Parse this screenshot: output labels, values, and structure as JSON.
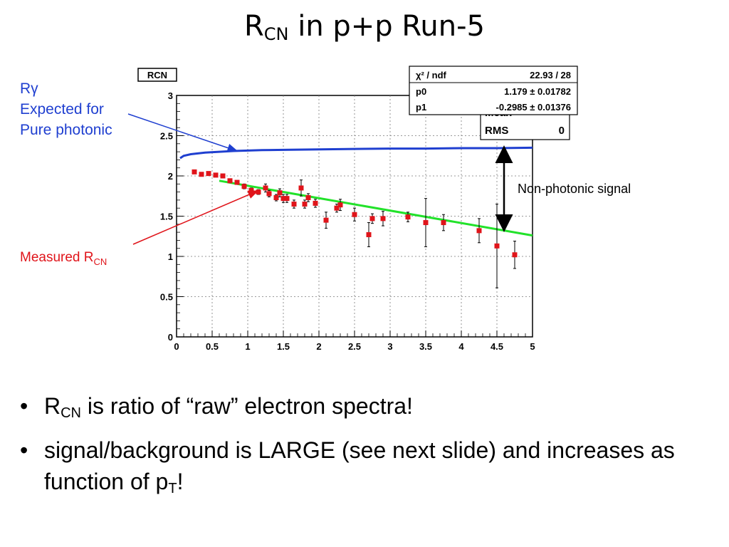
{
  "slide": {
    "title_main": "R",
    "title_sub": "CN",
    "title_rest": " in p+p Run-5"
  },
  "annotations": {
    "rgamma_line1": "Rγ",
    "rgamma_line2": "Expected for",
    "rgamma_line3": "Pure photonic",
    "measured_main": "Measured R",
    "measured_sub": "CN",
    "nonphotonic": "Non-photonic signal"
  },
  "bullets": {
    "b1_main": "R",
    "b1_sub": "CN",
    "b1_rest": " is ratio of “raw” electron spectra!",
    "b2_line": "signal/background is LARGE (see next slide) and increases as function of p",
    "b2_sub": "T",
    "b2_end": "!"
  },
  "statbox": {
    "fit_rows": [
      {
        "label": "χ² / ndf",
        "value": "22.93 / 28"
      },
      {
        "label": "p0",
        "value": "1.179 ± 0.01782"
      },
      {
        "label": "p1",
        "value": "-0.2985 ± 0.01376"
      }
    ],
    "hidden_label": "Mean",
    "rms_label": "RMS",
    "rms_value": "0"
  },
  "colors": {
    "measured": "#e0141a",
    "fit": "#22e22a",
    "expected": "#1f3fd0",
    "grid": "#7a7a7a"
  },
  "chart_data": {
    "type": "scatter",
    "title": "RCN",
    "xlim": [
      0,
      5
    ],
    "ylim": [
      0,
      3
    ],
    "xticks": [
      "0",
      "0.5",
      "1",
      "1.5",
      "2",
      "2.5",
      "3",
      "3.5",
      "4",
      "4.5",
      "5"
    ],
    "yticks": [
      "0",
      "0.5",
      "1",
      "1.5",
      "2",
      "2.5",
      "3"
    ],
    "grid": true,
    "series": [
      {
        "name": "Measured R_CN",
        "x": [
          0.25,
          0.35,
          0.45,
          0.55,
          0.65,
          0.75,
          0.85,
          0.95,
          1.05,
          1.15,
          1.25,
          1.3,
          1.4,
          1.45,
          1.5,
          1.55,
          1.65,
          1.75,
          1.8,
          1.85,
          1.95,
          2.1,
          2.25,
          2.3,
          2.5,
          2.7,
          2.75,
          2.9,
          3.25,
          3.5,
          3.75,
          4.25,
          4.5,
          4.75
        ],
        "y": [
          2.05,
          2.02,
          2.03,
          2.01,
          2.0,
          1.94,
          1.92,
          1.87,
          1.82,
          1.8,
          1.85,
          1.78,
          1.73,
          1.79,
          1.72,
          1.72,
          1.65,
          1.85,
          1.65,
          1.73,
          1.66,
          1.45,
          1.6,
          1.64,
          1.52,
          1.27,
          1.47,
          1.47,
          1.49,
          1.42,
          1.42,
          1.32,
          1.13,
          1.02
        ],
        "yerr": [
          0.02,
          0.02,
          0.02,
          0.02,
          0.02,
          0.02,
          0.02,
          0.03,
          0.03,
          0.03,
          0.05,
          0.04,
          0.04,
          0.05,
          0.05,
          0.05,
          0.05,
          0.1,
          0.05,
          0.05,
          0.05,
          0.1,
          0.05,
          0.07,
          0.08,
          0.15,
          0.06,
          0.09,
          0.06,
          0.3,
          0.1,
          0.15,
          0.52,
          0.17
        ]
      },
      {
        "name": "Fit",
        "x": [
          0.6,
          5.0
        ],
        "y": [
          1.94,
          1.26
        ]
      },
      {
        "name": "Rγ Expected for Pure photonic",
        "x": [
          0.05,
          0.1,
          0.2,
          0.4,
          0.8,
          1.2,
          1.6,
          2.0,
          2.5,
          3.0,
          3.5,
          4.0,
          4.5,
          5.0
        ],
        "y": [
          2.22,
          2.25,
          2.27,
          2.29,
          2.31,
          2.32,
          2.325,
          2.33,
          2.335,
          2.34,
          2.34,
          2.345,
          2.345,
          2.35
        ]
      }
    ]
  }
}
